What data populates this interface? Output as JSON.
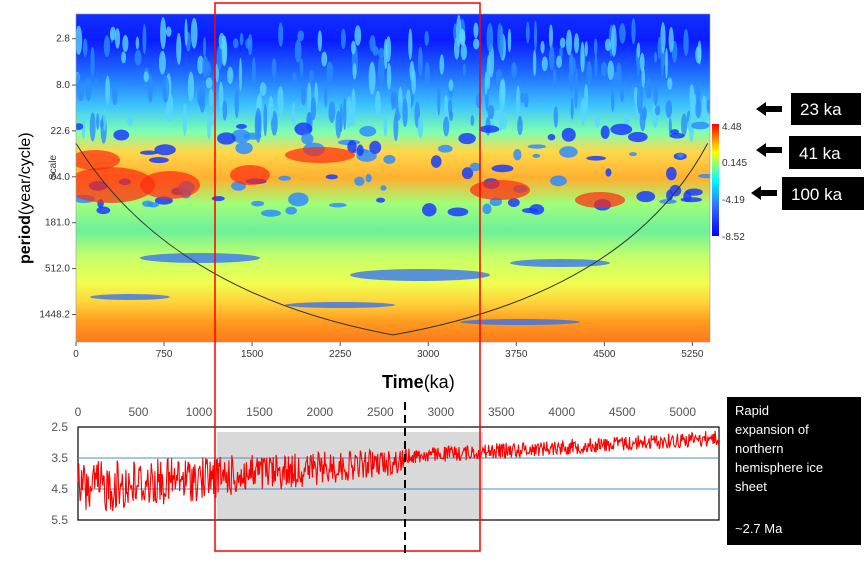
{
  "chart_data": [
    {
      "type": "heatmap",
      "title": "",
      "xlabel_bold": "Time",
      "xlabel_unit": "(ka)",
      "ylabel_bold": "period",
      "ylabel_unit": "(year/cycle)",
      "scale_label": "Scale",
      "x_ticks": [
        "0",
        "750",
        "1500",
        "2250",
        "3000",
        "3750",
        "4500",
        "5250"
      ],
      "x_tick_values": [
        0,
        750,
        1500,
        2250,
        3000,
        3750,
        4500,
        5250
      ],
      "xlim": [
        0,
        5400
      ],
      "y_ticks": [
        "2.8",
        "8.0",
        "22.6",
        "64.0",
        "181.0",
        "512.0",
        "1448.2"
      ],
      "y_tick_values": [
        2.8,
        8.0,
        22.6,
        64.0,
        181.0,
        512.0,
        1448.2
      ],
      "y_scale": "log2",
      "ylim": [
        1.6,
        2700
      ],
      "colorbar_ticks": [
        "4.48",
        "0.145",
        "-4.19",
        "-8.52"
      ],
      "colorbar_values": [
        4.48,
        0.145,
        -4.19,
        -8.52
      ],
      "colors": {
        "high": "#ff0000",
        "mid": "#ffff00",
        "low": "#0000ff",
        "cone": "#333333"
      },
      "highlight_box": {
        "x_range": [
          1150,
          3350
        ],
        "color": "#ff0000"
      }
    },
    {
      "type": "line",
      "x_ticks": [
        "0",
        "500",
        "1000",
        "1500",
        "2000",
        "2500",
        "3000",
        "3500",
        "4000",
        "4500",
        "5000"
      ],
      "x_tick_values": [
        0,
        500,
        1000,
        1500,
        2000,
        2500,
        3000,
        3500,
        4000,
        4500,
        5000
      ],
      "xlim": [
        0,
        5300
      ],
      "y_ticks": [
        "2.5",
        "3.5",
        "4.5",
        "5.5"
      ],
      "y_tick_values": [
        2.5,
        3.5,
        4.5,
        5.5
      ],
      "ylim": [
        2.5,
        5.5
      ],
      "y_inverted": true,
      "reference_lines": [
        3.5,
        4.5
      ],
      "shaded_range": [
        1150,
        3350
      ],
      "dashed_marker": 2700,
      "series": [
        {
          "color": "#ff0000"
        }
      ]
    }
  ],
  "badges": {
    "b23": "23 ka",
    "b41": "41 ka",
    "b100": "100 ka"
  },
  "note": {
    "lines": [
      "Rapid",
      "expansion of",
      "northern",
      "hemisphere ice",
      "sheet"
    ],
    "age": "~2.7 Ma"
  }
}
